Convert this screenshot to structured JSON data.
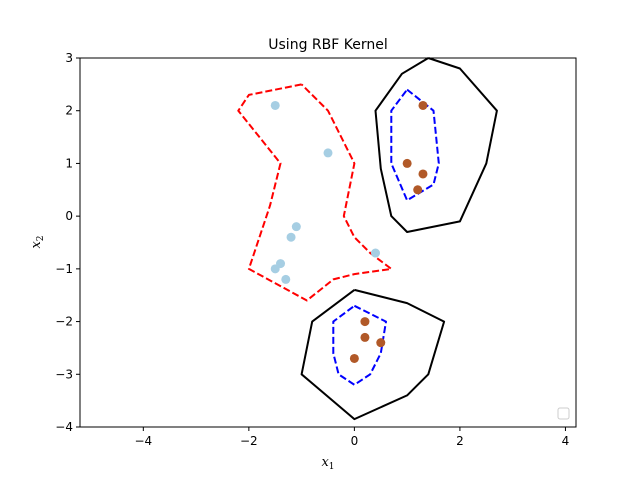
{
  "chart_data": {
    "type": "scatter",
    "title": "Using RBF Kernel",
    "xlabel": "x",
    "xlabel_sub": "1",
    "ylabel": "x",
    "ylabel_sub": "2",
    "xlim": [
      -5.2,
      4.2
    ],
    "ylim": [
      -4,
      3
    ],
    "xticks": [
      -4,
      -2,
      0,
      2,
      4
    ],
    "yticks": [
      -4,
      -3,
      -2,
      -1,
      0,
      1,
      2,
      3
    ],
    "xtick_labels": [
      "−4",
      "−2",
      "0",
      "2",
      "4"
    ],
    "ytick_labels": [
      "−4",
      "−3",
      "−2",
      "−1",
      "0",
      "1",
      "2",
      "3"
    ],
    "grid": false,
    "legend": "lower-right (empty)",
    "series": [
      {
        "color": "#a6cee3",
        "points": [
          [
            -1.5,
            2.1
          ],
          [
            -0.5,
            1.2
          ],
          [
            -1.1,
            -0.2
          ],
          [
            -1.2,
            -0.4
          ],
          [
            0.4,
            -0.7
          ],
          [
            -1.4,
            -0.9
          ],
          [
            -1.5,
            -1.0
          ],
          [
            -1.3,
            -1.2
          ]
        ]
      },
      {
        "color": "#b15928",
        "points": [
          [
            1.3,
            2.1
          ],
          [
            1.0,
            1.0
          ],
          [
            1.3,
            0.8
          ],
          [
            1.2,
            0.5
          ],
          [
            0.2,
            -2.0
          ],
          [
            0.2,
            -2.3
          ],
          [
            0.5,
            -2.4
          ],
          [
            0.0,
            -2.7
          ]
        ]
      }
    ],
    "contours": [
      {
        "color": "#ff0000",
        "style": "dashed",
        "points": [
          [
            -1.0,
            2.5
          ],
          [
            -2.0,
            2.3
          ],
          [
            -2.2,
            2.0
          ],
          [
            -1.4,
            1.0
          ],
          [
            -1.6,
            0.2
          ],
          [
            -2.0,
            -1.0
          ],
          [
            -0.9,
            -1.6
          ],
          [
            -0.4,
            -1.2
          ],
          [
            0.0,
            -1.1
          ],
          [
            0.7,
            -1.0
          ],
          [
            0.3,
            -0.7
          ],
          [
            0.0,
            -0.4
          ],
          [
            -0.2,
            0.0
          ],
          [
            0.0,
            1.0
          ],
          [
            -0.5,
            2.0
          ],
          [
            -1.0,
            2.5
          ]
        ]
      },
      {
        "color": "#0000ff",
        "style": "dashed",
        "points": [
          [
            1.0,
            2.4
          ],
          [
            1.5,
            2.0
          ],
          [
            1.6,
            1.0
          ],
          [
            1.5,
            0.6
          ],
          [
            1.0,
            0.3
          ],
          [
            0.7,
            1.0
          ],
          [
            0.7,
            2.0
          ],
          [
            1.0,
            2.4
          ]
        ]
      },
      {
        "color": "#0000ff",
        "style": "dashed",
        "points": [
          [
            0.0,
            -1.7
          ],
          [
            0.6,
            -2.0
          ],
          [
            0.5,
            -2.6
          ],
          [
            0.3,
            -3.0
          ],
          [
            0.0,
            -3.2
          ],
          [
            -0.3,
            -3.0
          ],
          [
            -0.4,
            -2.6
          ],
          [
            -0.4,
            -2.0
          ],
          [
            0.0,
            -1.7
          ]
        ]
      },
      {
        "color": "#000000",
        "style": "solid",
        "points": [
          [
            1.4,
            3.0
          ],
          [
            2.0,
            2.8
          ],
          [
            2.7,
            2.0
          ],
          [
            2.5,
            1.0
          ],
          [
            2.0,
            -0.1
          ],
          [
            1.0,
            -0.3
          ],
          [
            0.7,
            0.0
          ],
          [
            0.5,
            0.9
          ],
          [
            0.4,
            2.0
          ],
          [
            0.9,
            2.7
          ],
          [
            1.4,
            3.0
          ]
        ]
      },
      {
        "color": "#000000",
        "style": "solid",
        "points": [
          [
            0.0,
            -1.4
          ],
          [
            1.0,
            -1.65
          ],
          [
            1.7,
            -2.0
          ],
          [
            1.4,
            -3.0
          ],
          [
            1.0,
            -3.4
          ],
          [
            0.0,
            -3.85
          ],
          [
            -1.0,
            -3.0
          ],
          [
            -0.8,
            -2.0
          ],
          [
            0.0,
            -1.4
          ]
        ]
      }
    ]
  }
}
